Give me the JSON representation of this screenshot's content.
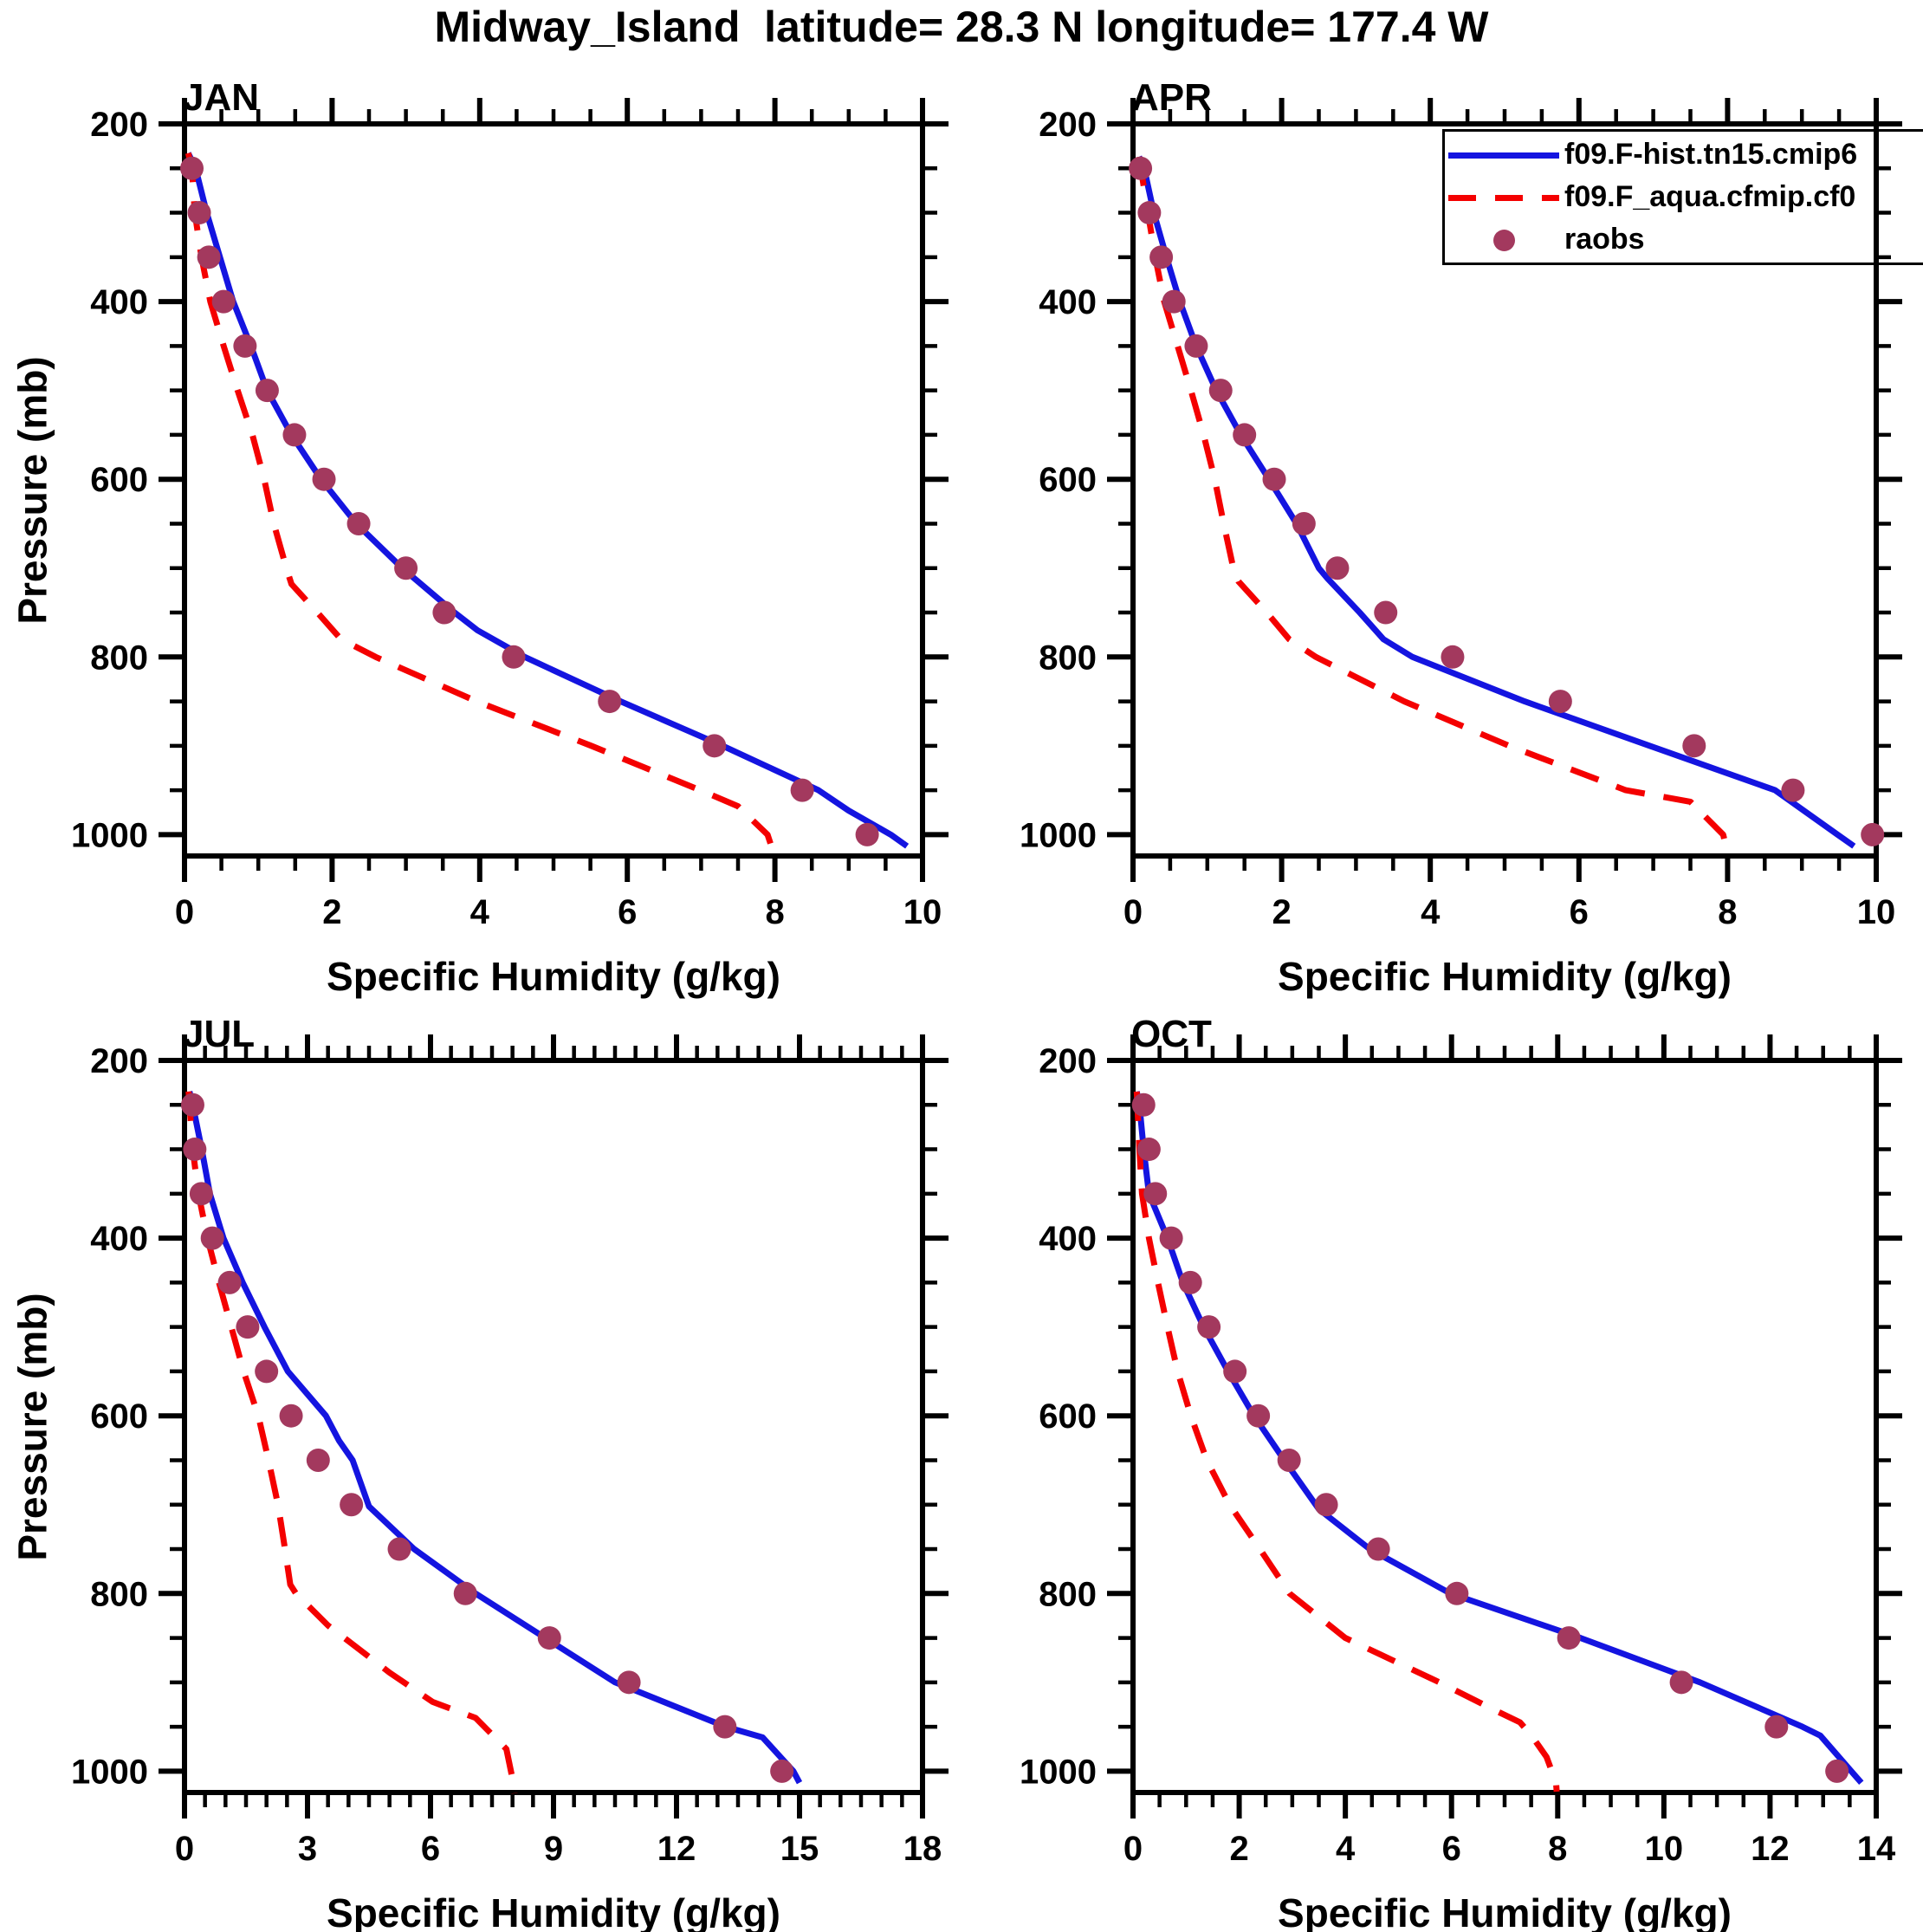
{
  "title": "Midway_Island  latitude= 28.3 N longitude= 177.4 W",
  "colors": {
    "model": "#1414e0",
    "aqua": "#f40000",
    "raobs": "#a3395e",
    "axis": "#000000"
  },
  "axes": {
    "xlabel": "Specific Humidity (g/kg)",
    "ylabel": "Pressure (mb)",
    "yticks": [
      200,
      400,
      600,
      800,
      1000
    ],
    "yminor_step": 50,
    "ylim": [
      200,
      1024
    ]
  },
  "legend": {
    "entries": [
      {
        "key": "model",
        "style": "solid-line",
        "label": "f09.F-hist.tn15.cmip6"
      },
      {
        "key": "aqua",
        "style": "dashed-line",
        "label": "f09.F_aqua.cfmip.cf0"
      },
      {
        "key": "raobs",
        "style": "dot",
        "label": "raobs"
      }
    ]
  },
  "chart_data": [
    {
      "month": "JAN",
      "type": "line",
      "xlim": [
        0,
        10
      ],
      "xticks": [
        0,
        2,
        4,
        6,
        8,
        10
      ],
      "xminor_step": 0.5,
      "ylim": [
        200,
        1024
      ],
      "series": [
        {
          "name": "f09.F-hist.tn15.cmip6",
          "kind": "line",
          "color_key": "model",
          "points": [
            [
              233,
              0.05
            ],
            [
              250,
              0.15
            ],
            [
              300,
              0.3
            ],
            [
              350,
              0.48
            ],
            [
              400,
              0.66
            ],
            [
              450,
              0.9
            ],
            [
              500,
              1.12
            ],
            [
              550,
              1.45
            ],
            [
              600,
              1.85
            ],
            [
              650,
              2.33
            ],
            [
              700,
              2.95
            ],
            [
              750,
              3.66
            ],
            [
              770,
              3.97
            ],
            [
              800,
              4.61
            ],
            [
              850,
              5.91
            ],
            [
              900,
              7.29
            ],
            [
              950,
              8.59
            ],
            [
              973,
              9.0
            ],
            [
              1000,
              9.57
            ],
            [
              1013,
              9.79
            ]
          ]
        },
        {
          "name": "f09.F_aqua.cfmip.cf0",
          "kind": "dashed",
          "color_key": "aqua",
          "points": [
            [
              233,
              0.05
            ],
            [
              250,
              0.1
            ],
            [
              300,
              0.14
            ],
            [
              350,
              0.23
            ],
            [
              400,
              0.35
            ],
            [
              450,
              0.53
            ],
            [
              500,
              0.72
            ],
            [
              550,
              0.92
            ],
            [
              600,
              1.08
            ],
            [
              650,
              1.21
            ],
            [
              700,
              1.38
            ],
            [
              718,
              1.45
            ],
            [
              750,
              1.8
            ],
            [
              780,
              2.12
            ],
            [
              800,
              2.59
            ],
            [
              850,
              3.96
            ],
            [
              900,
              5.51
            ],
            [
              950,
              6.99
            ],
            [
              968,
              7.5
            ],
            [
              1000,
              7.9
            ],
            [
              1020,
              7.98
            ]
          ]
        },
        {
          "name": "raobs",
          "kind": "scatter",
          "color_key": "raobs",
          "points": [
            [
              250,
              0.1
            ],
            [
              300,
              0.2
            ],
            [
              350,
              0.33
            ],
            [
              400,
              0.53
            ],
            [
              450,
              0.82
            ],
            [
              500,
              1.12
            ],
            [
              550,
              1.49
            ],
            [
              600,
              1.89
            ],
            [
              650,
              2.36
            ],
            [
              700,
              3.0
            ],
            [
              750,
              3.52
            ],
            [
              800,
              4.46
            ],
            [
              850,
              5.76
            ],
            [
              900,
              7.18
            ],
            [
              950,
              8.37
            ],
            [
              1000,
              9.25
            ]
          ]
        }
      ]
    },
    {
      "month": "APR",
      "type": "line",
      "xlim": [
        0,
        10
      ],
      "xticks": [
        0,
        2,
        4,
        6,
        8,
        10
      ],
      "xminor_step": 0.5,
      "ylim": [
        200,
        1024
      ],
      "series": [
        {
          "name": "f09.F-hist.tn15.cmip6",
          "kind": "line",
          "color_key": "model",
          "points": [
            [
              237,
              0.08
            ],
            [
              250,
              0.15
            ],
            [
              300,
              0.28
            ],
            [
              350,
              0.45
            ],
            [
              400,
              0.63
            ],
            [
              450,
              0.85
            ],
            [
              500,
              1.12
            ],
            [
              550,
              1.45
            ],
            [
              600,
              1.83
            ],
            [
              650,
              2.2
            ],
            [
              700,
              2.5
            ],
            [
              712,
              2.62
            ],
            [
              750,
              3.05
            ],
            [
              780,
              3.37
            ],
            [
              800,
              3.76
            ],
            [
              850,
              5.27
            ],
            [
              900,
              6.95
            ],
            [
              950,
              8.64
            ],
            [
              1000,
              9.48
            ],
            [
              1013,
              9.7
            ]
          ]
        },
        {
          "name": "f09.F_aqua.cfmip.cf0",
          "kind": "dashed",
          "color_key": "aqua",
          "points": [
            [
              237,
              0.08
            ],
            [
              300,
              0.2
            ],
            [
              350,
              0.3
            ],
            [
              400,
              0.42
            ],
            [
              450,
              0.6
            ],
            [
              500,
              0.78
            ],
            [
              550,
              0.95
            ],
            [
              600,
              1.1
            ],
            [
              650,
              1.22
            ],
            [
              700,
              1.35
            ],
            [
              715,
              1.42
            ],
            [
              750,
              1.8
            ],
            [
              780,
              2.1
            ],
            [
              800,
              2.46
            ],
            [
              850,
              3.65
            ],
            [
              900,
              5.06
            ],
            [
              950,
              6.63
            ],
            [
              963,
              7.5
            ],
            [
              1000,
              7.94
            ],
            [
              1020,
              8.0
            ]
          ]
        },
        {
          "name": "raobs",
          "kind": "scatter",
          "color_key": "raobs",
          "points": [
            [
              250,
              0.1
            ],
            [
              300,
              0.22
            ],
            [
              350,
              0.38
            ],
            [
              400,
              0.55
            ],
            [
              450,
              0.85
            ],
            [
              500,
              1.18
            ],
            [
              550,
              1.5
            ],
            [
              600,
              1.9
            ],
            [
              650,
              2.3
            ],
            [
              700,
              2.75
            ],
            [
              750,
              3.4
            ],
            [
              800,
              4.3
            ],
            [
              850,
              5.75
            ],
            [
              900,
              7.55
            ],
            [
              950,
              8.88
            ],
            [
              1000,
              9.95
            ]
          ]
        }
      ]
    },
    {
      "month": "JUL",
      "type": "line",
      "xlim": [
        0,
        18
      ],
      "xticks": [
        0,
        3,
        6,
        9,
        12,
        15,
        18
      ],
      "xminor_step": 0.5,
      "ylim": [
        200,
        1024
      ],
      "series": [
        {
          "name": "f09.F-hist.tn15.cmip6",
          "kind": "line",
          "color_key": "model",
          "points": [
            [
              235,
              0.12
            ],
            [
              250,
              0.2
            ],
            [
              300,
              0.42
            ],
            [
              350,
              0.62
            ],
            [
              400,
              0.95
            ],
            [
              450,
              1.42
            ],
            [
              500,
              1.95
            ],
            [
              550,
              2.52
            ],
            [
              600,
              3.45
            ],
            [
              628,
              3.77
            ],
            [
              650,
              4.1
            ],
            [
              702,
              4.5
            ],
            [
              750,
              5.6
            ],
            [
              800,
              7.1
            ],
            [
              850,
              8.8
            ],
            [
              900,
              10.5
            ],
            [
              950,
              13.2
            ],
            [
              962,
              14.1
            ],
            [
              1000,
              14.85
            ],
            [
              1013,
              15.0
            ]
          ]
        },
        {
          "name": "f09.F_aqua.cfmip.cf0",
          "kind": "dashed",
          "color_key": "aqua",
          "points": [
            [
              235,
              0.1
            ],
            [
              300,
              0.2
            ],
            [
              350,
              0.34
            ],
            [
              400,
              0.56
            ],
            [
              450,
              0.84
            ],
            [
              500,
              1.14
            ],
            [
              550,
              1.44
            ],
            [
              600,
              1.8
            ],
            [
              650,
              2.05
            ],
            [
              700,
              2.28
            ],
            [
              720,
              2.35
            ],
            [
              750,
              2.45
            ],
            [
              790,
              2.58
            ],
            [
              800,
              2.72
            ],
            [
              836,
              3.5
            ],
            [
              850,
              3.9
            ],
            [
              889,
              5.0
            ],
            [
              922,
              6.05
            ],
            [
              940,
              7.1
            ],
            [
              975,
              7.85
            ],
            [
              1013,
              8.02
            ],
            [
              1025,
              8.05
            ]
          ]
        },
        {
          "name": "raobs",
          "kind": "scatter",
          "color_key": "raobs",
          "points": [
            [
              250,
              0.2
            ],
            [
              300,
              0.25
            ],
            [
              350,
              0.41
            ],
            [
              400,
              0.68
            ],
            [
              450,
              1.1
            ],
            [
              500,
              1.54
            ],
            [
              550,
              2.0
            ],
            [
              600,
              2.6
            ],
            [
              650,
              3.26
            ],
            [
              700,
              4.07
            ],
            [
              750,
              5.24
            ],
            [
              800,
              6.85
            ],
            [
              850,
              8.9
            ],
            [
              900,
              10.84
            ],
            [
              950,
              13.18
            ],
            [
              1000,
              14.57
            ]
          ]
        }
      ]
    },
    {
      "month": "OCT",
      "type": "line",
      "xlim": [
        0,
        14
      ],
      "xticks": [
        0,
        2,
        4,
        6,
        8,
        10,
        12,
        14
      ],
      "xminor_step": 0.5,
      "ylim": [
        200,
        1024
      ],
      "series": [
        {
          "name": "f09.F-hist.tn15.cmip6",
          "kind": "line",
          "color_key": "model",
          "points": [
            [
              235,
              0.07
            ],
            [
              250,
              0.12
            ],
            [
              300,
              0.2
            ],
            [
              350,
              0.3
            ],
            [
              400,
              0.65
            ],
            [
              450,
              0.94
            ],
            [
              500,
              1.33
            ],
            [
              550,
              1.79
            ],
            [
              600,
              2.28
            ],
            [
              650,
              2.85
            ],
            [
              705,
              3.5
            ],
            [
              750,
              4.46
            ],
            [
              800,
              5.98
            ],
            [
              850,
              8.43
            ],
            [
              900,
              10.68
            ],
            [
              950,
              12.61
            ],
            [
              960,
              12.95
            ],
            [
              1000,
              13.53
            ],
            [
              1013,
              13.72
            ]
          ]
        },
        {
          "name": "f09.F_aqua.cfmip.cf0",
          "kind": "dashed",
          "color_key": "aqua",
          "points": [
            [
              235,
              0.07
            ],
            [
              300,
              0.12
            ],
            [
              350,
              0.17
            ],
            [
              400,
              0.3
            ],
            [
              450,
              0.47
            ],
            [
              500,
              0.65
            ],
            [
              550,
              0.84
            ],
            [
              600,
              1.09
            ],
            [
              650,
              1.39
            ],
            [
              700,
              1.82
            ],
            [
              750,
              2.39
            ],
            [
              800,
              2.95
            ],
            [
              850,
              4.0
            ],
            [
              900,
              5.77
            ],
            [
              932,
              6.84
            ],
            [
              945,
              7.29
            ],
            [
              961,
              7.52
            ],
            [
              984,
              7.79
            ],
            [
              1013,
              7.97
            ],
            [
              1023,
              7.98
            ]
          ]
        },
        {
          "name": "raobs",
          "kind": "scatter",
          "color_key": "raobs",
          "points": [
            [
              250,
              0.2
            ],
            [
              300,
              0.3
            ],
            [
              350,
              0.42
            ],
            [
              400,
              0.72
            ],
            [
              450,
              1.08
            ],
            [
              500,
              1.43
            ],
            [
              550,
              1.92
            ],
            [
              600,
              2.36
            ],
            [
              650,
              2.94
            ],
            [
              700,
              3.64
            ],
            [
              750,
              4.62
            ],
            [
              800,
              6.1
            ],
            [
              850,
              8.21
            ],
            [
              900,
              10.33
            ],
            [
              950,
              12.12
            ],
            [
              1000,
              13.26
            ]
          ]
        }
      ]
    }
  ]
}
